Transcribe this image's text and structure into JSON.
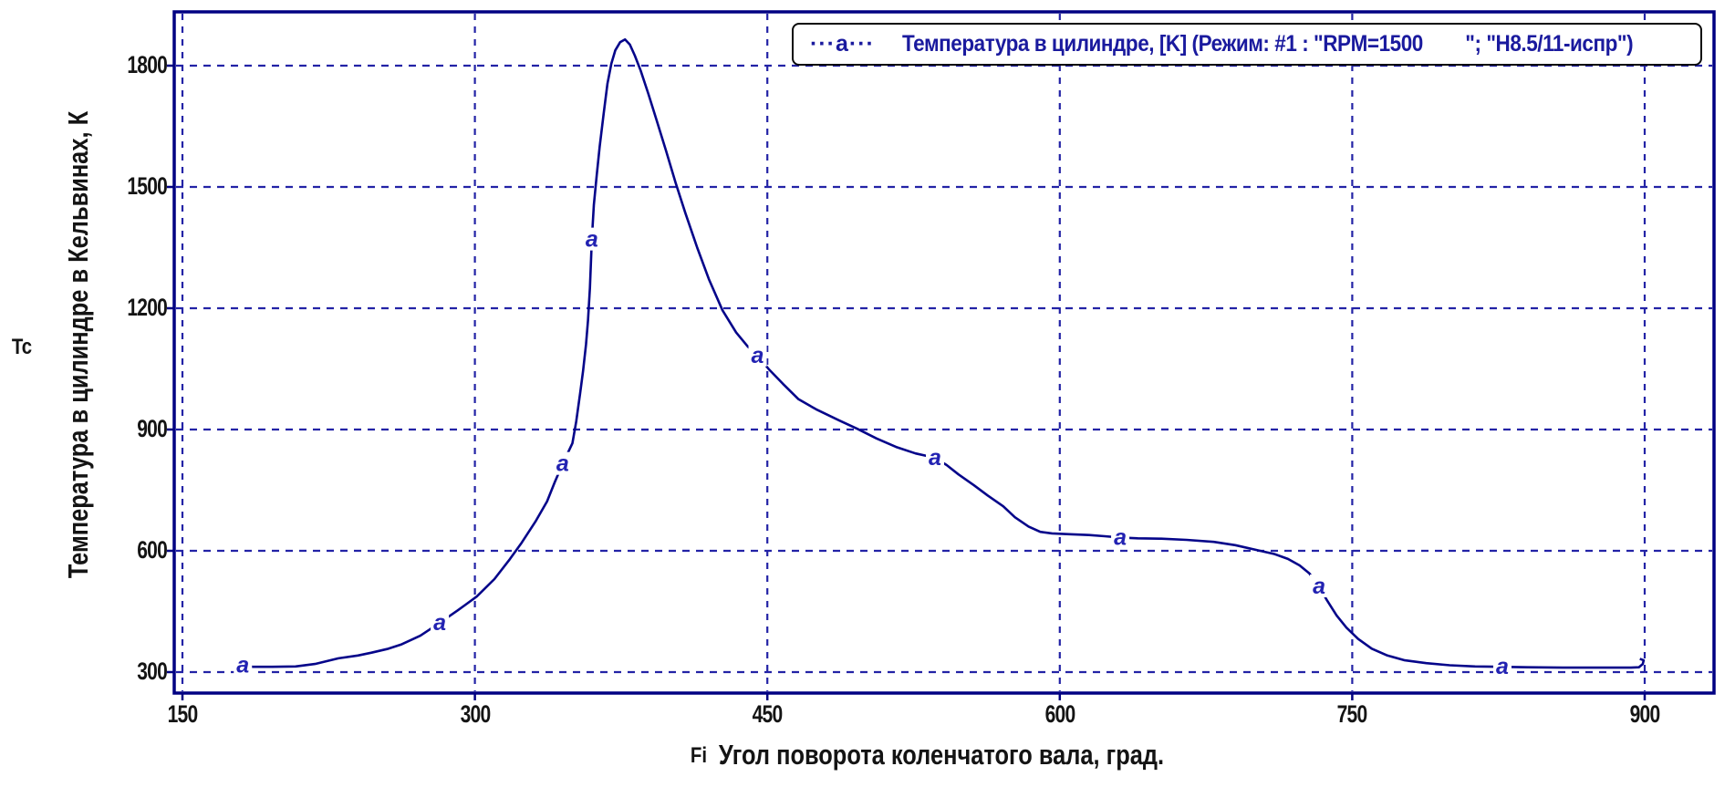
{
  "axes": {
    "x_symbol": "Fi",
    "x_title": "Угол поворота коленчатого вала, град.",
    "y_symbol": "Tc",
    "y_title": "Температура в цилиндре в Кельвинах, К"
  },
  "legend": {
    "marker": "···a···",
    "label": "Температура в цилиндре, [K] (Режим: #1 : \"RPM=1500        \"; \"Н8.5/11-испр\")"
  },
  "colors": {
    "frame": "#000082",
    "grid": "#2323a6",
    "curve": "#05058a",
    "marker_letter": "#2222b2",
    "tick_text": "#141414",
    "legend_text": "#1a1a9e"
  },
  "chart_data": {
    "type": "line",
    "title": "",
    "xlabel": "Угол поворота коленчатого вала, град.",
    "ylabel": "Температура в цилиндре в Кельвинах, К",
    "x_ticks": [
      150,
      300,
      450,
      600,
      750,
      900
    ],
    "y_ticks": [
      300,
      600,
      900,
      1200,
      1500,
      1800
    ],
    "xlim": [
      146,
      935
    ],
    "ylim": [
      248,
      1933
    ],
    "grid": "dashed",
    "legend_position": "top-right",
    "series": [
      {
        "name": "Температура в цилиндре, [K]",
        "mode": "Режим: #1 : \"RPM=1500\"; \"Н8.5/11-испр\"",
        "marker": "a",
        "points": [
          [
            181,
            317
          ],
          [
            186,
            313
          ],
          [
            196,
            313
          ],
          [
            208,
            314
          ],
          [
            218,
            320
          ],
          [
            230,
            334
          ],
          [
            240,
            341
          ],
          [
            247,
            348
          ],
          [
            255,
            357
          ],
          [
            262,
            368
          ],
          [
            272,
            390
          ],
          [
            282,
            422
          ],
          [
            291,
            452
          ],
          [
            301,
            487
          ],
          [
            310,
            530
          ],
          [
            318,
            580
          ],
          [
            324,
            620
          ],
          [
            331,
            672
          ],
          [
            337,
            722
          ],
          [
            341,
            770
          ],
          [
            345,
            815
          ],
          [
            350,
            866
          ],
          [
            352,
            920
          ],
          [
            354,
            990
          ],
          [
            355.5,
            1045
          ],
          [
            357,
            1110
          ],
          [
            358,
            1170
          ],
          [
            359,
            1250
          ],
          [
            360,
            1370
          ],
          [
            361,
            1455
          ],
          [
            362.5,
            1530
          ],
          [
            364,
            1600
          ],
          [
            366,
            1680
          ],
          [
            368,
            1755
          ],
          [
            370,
            1805
          ],
          [
            372,
            1838
          ],
          [
            374.5,
            1858
          ],
          [
            377,
            1865
          ],
          [
            379.5,
            1852
          ],
          [
            382,
            1825
          ],
          [
            385,
            1788
          ],
          [
            389,
            1730
          ],
          [
            393,
            1668
          ],
          [
            398,
            1590
          ],
          [
            403,
            1510
          ],
          [
            408,
            1435
          ],
          [
            414,
            1350
          ],
          [
            420,
            1272
          ],
          [
            427,
            1195
          ],
          [
            434,
            1140
          ],
          [
            440,
            1105
          ],
          [
            445,
            1083
          ],
          [
            451,
            1048
          ],
          [
            458,
            1013
          ],
          [
            466,
            975
          ],
          [
            475,
            950
          ],
          [
            487,
            922
          ],
          [
            496,
            902
          ],
          [
            506,
            878
          ],
          [
            516,
            857
          ],
          [
            526,
            841
          ],
          [
            536,
            830
          ],
          [
            542,
            812
          ],
          [
            548,
            789
          ],
          [
            556,
            762
          ],
          [
            563,
            737
          ],
          [
            571,
            710
          ],
          [
            577,
            683
          ],
          [
            584,
            660
          ],
          [
            590,
            647
          ],
          [
            596,
            643
          ],
          [
            605,
            641
          ],
          [
            615,
            639
          ],
          [
            623,
            636
          ],
          [
            631,
            633
          ],
          [
            640,
            631
          ],
          [
            652,
            630
          ],
          [
            665,
            627
          ],
          [
            679,
            622
          ],
          [
            690,
            614
          ],
          [
            702,
            601
          ],
          [
            710,
            592
          ],
          [
            717,
            580
          ],
          [
            723,
            564
          ],
          [
            728,
            544
          ],
          [
            733,
            512
          ],
          [
            737,
            478
          ],
          [
            742,
            440
          ],
          [
            747,
            410
          ],
          [
            753,
            382
          ],
          [
            760,
            358
          ],
          [
            768,
            341
          ],
          [
            777,
            329
          ],
          [
            788,
            322
          ],
          [
            800,
            317
          ],
          [
            813,
            314
          ],
          [
            827,
            313
          ],
          [
            840,
            312
          ],
          [
            858,
            311
          ],
          [
            878,
            311
          ],
          [
            893,
            311
          ],
          [
            897,
            312
          ],
          [
            899,
            320
          ],
          [
            899.5,
            329
          ],
          [
            897.5,
            333
          ]
        ],
        "marker_points": [
          [
            181,
            317
          ],
          [
            282,
            422
          ],
          [
            345,
            815
          ],
          [
            360,
            1370
          ],
          [
            445,
            1083
          ],
          [
            536,
            830
          ],
          [
            631,
            633
          ],
          [
            733,
            512
          ],
          [
            827,
            313
          ]
        ]
      }
    ]
  }
}
